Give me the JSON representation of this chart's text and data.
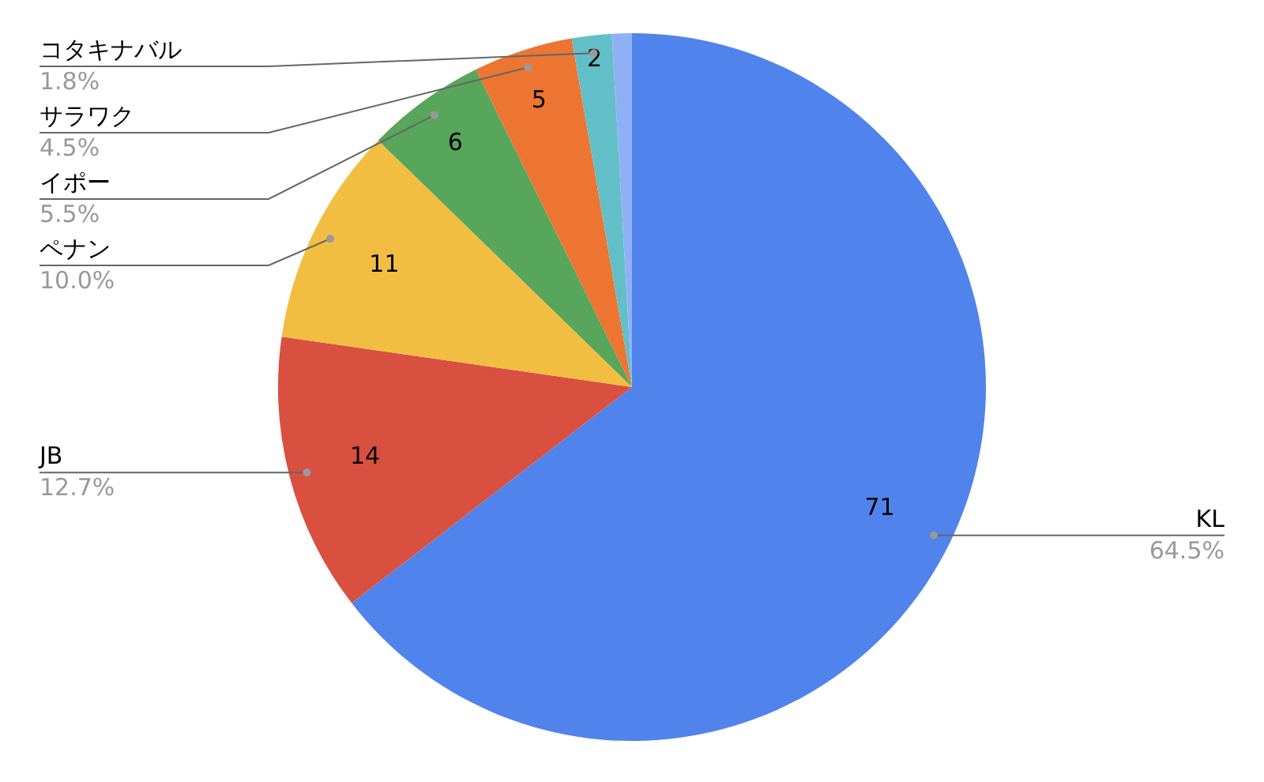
{
  "chart_data": {
    "type": "pie",
    "categories": [
      "KL",
      "JB",
      "ペナン",
      "イポー",
      "サラワク",
      "コタキナバル",
      null
    ],
    "values": [
      71,
      14,
      11,
      6,
      5,
      2,
      1
    ],
    "colors": [
      "#5083ec",
      "#d95040",
      "#f1be42",
      "#58a55c",
      "#ec7532",
      "#63bfc7",
      "#8fb0f5"
    ],
    "value_labels": [
      "71",
      "14",
      "11",
      "6",
      "5",
      "2",
      null
    ],
    "annotations": [
      "64.5%",
      "12.7%",
      "10.0%",
      "5.5%",
      "4.5%",
      "1.8%"
    ]
  }
}
